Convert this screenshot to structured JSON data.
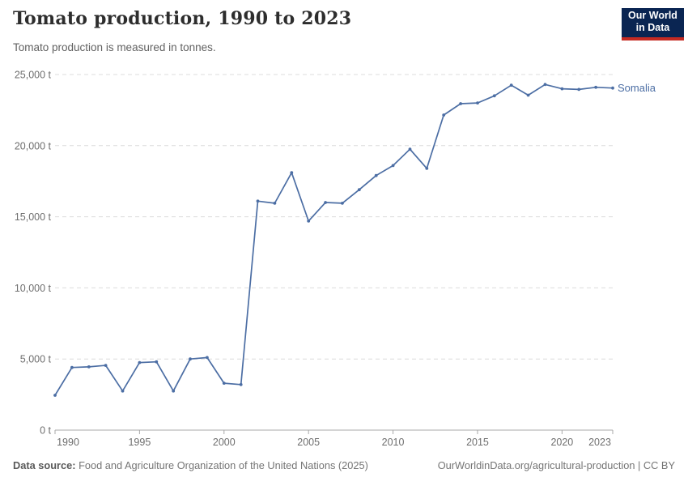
{
  "header": {
    "title": "Tomato production, 1990 to 2023",
    "subtitle": "Tomato production is measured in tonnes.",
    "logo": {
      "line1": "Our World",
      "line2": "in Data"
    }
  },
  "footer": {
    "source_label": "Data source:",
    "source_text": " Food and Agriculture Organization of the United Nations (2025)",
    "link_text": "OurWorldinData.org/agricultural-production | CC BY"
  },
  "colors": {
    "series_blue": "#4C6EA4",
    "gridline": "#dcdcdc",
    "axis": "#a8a8a8",
    "logo_navy": "#0a2552",
    "logo_red": "#c52a22"
  },
  "chart_data": {
    "type": "line",
    "title": "Tomato production, 1990 to 2023",
    "subtitle": "Tomato production is measured in tonnes.",
    "unit": "tonnes",
    "xlim": [
      1990,
      2023
    ],
    "ylim": [
      0,
      25000
    ],
    "grid": "horizontal-dashed",
    "legend_position": "end-of-line-label",
    "x": [
      1990,
      1991,
      1992,
      1993,
      1994,
      1995,
      1996,
      1997,
      1998,
      1999,
      2000,
      2001,
      2002,
      2003,
      2004,
      2005,
      2006,
      2007,
      2008,
      2009,
      2010,
      2011,
      2012,
      2013,
      2014,
      2015,
      2016,
      2017,
      2018,
      2019,
      2020,
      2021,
      2022,
      2023
    ],
    "series": [
      {
        "name": "Somalia",
        "color": "#4C6EA4",
        "values": [
          2450,
          4400,
          4450,
          4550,
          2750,
          4750,
          4800,
          2750,
          5000,
          5100,
          3300,
          3200,
          16100,
          15950,
          18100,
          14700,
          16000,
          15950,
          16900,
          17900,
          18600,
          19750,
          18400,
          22150,
          22950,
          23000,
          23500,
          24250,
          23550,
          24300,
          24000,
          23950,
          24100,
          24050
        ]
      }
    ],
    "x_ticks": [
      {
        "value": 1990,
        "label": "1990"
      },
      {
        "value": 1995,
        "label": "1995"
      },
      {
        "value": 2000,
        "label": "2000"
      },
      {
        "value": 2005,
        "label": "2005"
      },
      {
        "value": 2010,
        "label": "2010"
      },
      {
        "value": 2015,
        "label": "2015"
      },
      {
        "value": 2020,
        "label": "2020"
      },
      {
        "value": 2023,
        "label": "2023"
      }
    ],
    "y_ticks": [
      {
        "value": 0,
        "label": "0 t"
      },
      {
        "value": 5000,
        "label": "5,000 t"
      },
      {
        "value": 10000,
        "label": "10,000 t"
      },
      {
        "value": 15000,
        "label": "15,000 t"
      },
      {
        "value": 20000,
        "label": "20,000 t"
      },
      {
        "value": 25000,
        "label": "25,000 t"
      }
    ]
  }
}
